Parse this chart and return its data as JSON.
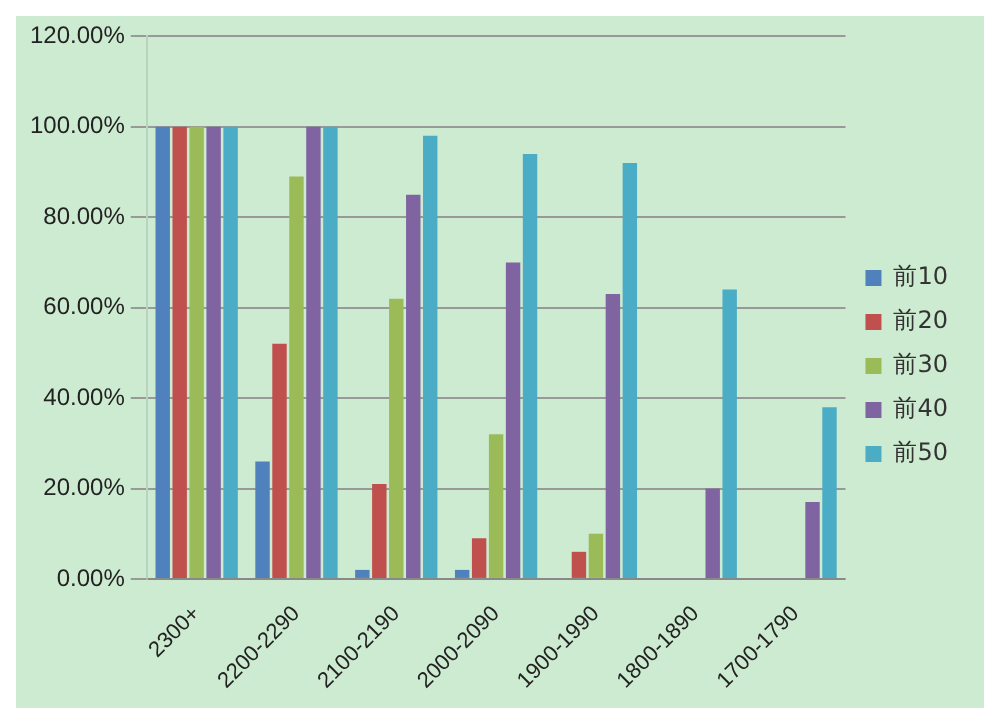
{
  "chart_data": {
    "type": "bar",
    "categories": [
      "2300+",
      "2200-2290",
      "2100-2190",
      "2000-2090",
      "1900-1990",
      "1800-1890",
      "1700-1790"
    ],
    "series": [
      {
        "name": "前10",
        "color": "#4f81bd",
        "values": [
          100,
          26,
          2,
          2,
          0,
          0,
          0
        ]
      },
      {
        "name": "前20",
        "color": "#c0504d",
        "values": [
          100,
          52,
          21,
          9,
          6,
          0,
          0
        ]
      },
      {
        "name": "前30",
        "color": "#9bbb59",
        "values": [
          100,
          89,
          62,
          32,
          10,
          0,
          0
        ]
      },
      {
        "name": "前40",
        "color": "#8064a2",
        "values": [
          100,
          100,
          85,
          70,
          63,
          20,
          17
        ]
      },
      {
        "name": "前50",
        "color": "#4bacc6",
        "values": [
          100,
          100,
          98,
          94,
          92,
          64,
          38
        ]
      }
    ],
    "ylim": [
      0,
      120
    ],
    "yticks": [
      {
        "value": 0,
        "label": "0.00%"
      },
      {
        "value": 20,
        "label": "20.00%"
      },
      {
        "value": 40,
        "label": "40.00%"
      },
      {
        "value": 60,
        "label": "60.00%"
      },
      {
        "value": 80,
        "label": "80.00%"
      },
      {
        "value": 100,
        "label": "100.00%"
      },
      {
        "value": 120,
        "label": "120.00%"
      }
    ],
    "grid": "y",
    "legend": "right"
  }
}
